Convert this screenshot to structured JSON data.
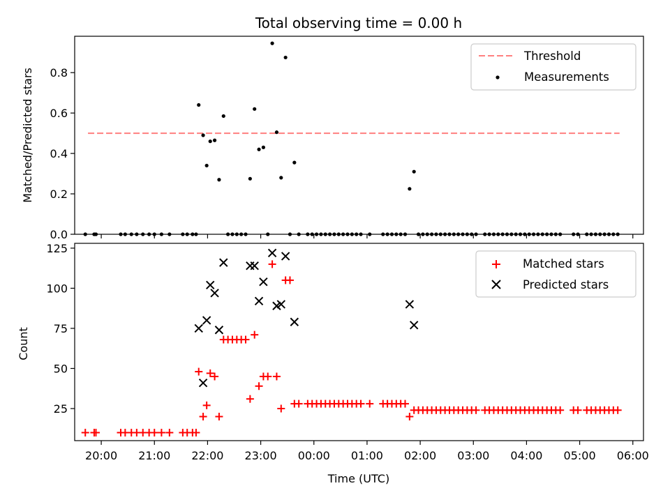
{
  "chart_data": [
    {
      "type": "scatter",
      "title": "Total observing time = 0.00 h",
      "xlabel": "",
      "ylabel": "Matched/Predicted stars",
      "xlim": [
        "19:30",
        "06:12"
      ],
      "ylim": [
        0,
        0.98
      ],
      "yticks": [
        0.0,
        0.2,
        0.4,
        0.6,
        0.8
      ],
      "yticklabels": [
        "0.0",
        "0.2",
        "0.4",
        "0.6",
        "0.8"
      ],
      "legend_position": "top-right",
      "legend": [
        "Threshold",
        "Measurements"
      ],
      "threshold": {
        "name": "Threshold",
        "value": 0.5,
        "x_start": "19:45",
        "x_end": "05:45",
        "color": "#ff7f7f",
        "style": "dashed"
      },
      "series": [
        {
          "name": "Measurements",
          "color": "#000000",
          "points": [
            [
              "19:42",
              0.0
            ],
            [
              "19:52",
              0.0
            ],
            [
              "19:54",
              0.0
            ],
            [
              "20:22",
              0.0
            ],
            [
              "20:27",
              0.0
            ],
            [
              "20:34",
              0.0
            ],
            [
              "20:40",
              0.0
            ],
            [
              "20:47",
              0.0
            ],
            [
              "20:54",
              0.0
            ],
            [
              "21:00",
              0.0
            ],
            [
              "21:08",
              0.0
            ],
            [
              "21:17",
              0.0
            ],
            [
              "21:32",
              0.0
            ],
            [
              "21:37",
              0.0
            ],
            [
              "21:43",
              0.0
            ],
            [
              "21:47",
              0.0
            ],
            [
              "21:50",
              0.64
            ],
            [
              "21:55",
              0.49
            ],
            [
              "21:59",
              0.34
            ],
            [
              "22:03",
              0.46
            ],
            [
              "22:08",
              0.465
            ],
            [
              "22:13",
              0.27
            ],
            [
              "22:18",
              0.585
            ],
            [
              "22:23",
              0.0
            ],
            [
              "22:28",
              0.0
            ],
            [
              "22:33",
              0.0
            ],
            [
              "22:38",
              0.0
            ],
            [
              "22:43",
              0.0
            ],
            [
              "22:48",
              0.275
            ],
            [
              "22:53",
              0.62
            ],
            [
              "22:58",
              0.42
            ],
            [
              "23:03",
              0.43
            ],
            [
              "23:08",
              0.0
            ],
            [
              "23:13",
              0.945
            ],
            [
              "23:18",
              0.505
            ],
            [
              "23:23",
              0.28
            ],
            [
              "23:28",
              0.875
            ],
            [
              "23:33",
              0.0
            ],
            [
              "23:38",
              0.355
            ],
            [
              "23:43",
              0.0
            ],
            [
              "23:53",
              0.0
            ],
            [
              "23:58",
              0.0
            ],
            [
              "00:03",
              0.0
            ],
            [
              "00:08",
              0.0
            ],
            [
              "00:13",
              0.0
            ],
            [
              "00:18",
              0.0
            ],
            [
              "00:23",
              0.0
            ],
            [
              "00:28",
              0.0
            ],
            [
              "00:33",
              0.0
            ],
            [
              "00:38",
              0.0
            ],
            [
              "00:43",
              0.0
            ],
            [
              "00:48",
              0.0
            ],
            [
              "00:53",
              0.0
            ],
            [
              "01:03",
              0.0
            ],
            [
              "01:18",
              0.0
            ],
            [
              "01:23",
              0.0
            ],
            [
              "01:28",
              0.0
            ],
            [
              "01:33",
              0.0
            ],
            [
              "01:38",
              0.0
            ],
            [
              "01:43",
              0.0
            ],
            [
              "01:48",
              0.225
            ],
            [
              "01:53",
              0.31
            ],
            [
              "01:58",
              0.0
            ],
            [
              "02:03",
              0.0
            ],
            [
              "02:08",
              0.0
            ],
            [
              "02:13",
              0.0
            ],
            [
              "02:18",
              0.0
            ],
            [
              "02:23",
              0.0
            ],
            [
              "02:28",
              0.0
            ],
            [
              "02:33",
              0.0
            ],
            [
              "02:38",
              0.0
            ],
            [
              "02:43",
              0.0
            ],
            [
              "02:48",
              0.0
            ],
            [
              "02:53",
              0.0
            ],
            [
              "02:58",
              0.0
            ],
            [
              "03:03",
              0.0
            ],
            [
              "03:13",
              0.0
            ],
            [
              "03:18",
              0.0
            ],
            [
              "03:23",
              0.0
            ],
            [
              "03:28",
              0.0
            ],
            [
              "03:33",
              0.0
            ],
            [
              "03:38",
              0.0
            ],
            [
              "03:43",
              0.0
            ],
            [
              "03:48",
              0.0
            ],
            [
              "03:53",
              0.0
            ],
            [
              "03:58",
              0.0
            ],
            [
              "04:03",
              0.0
            ],
            [
              "04:08",
              0.0
            ],
            [
              "04:13",
              0.0
            ],
            [
              "04:18",
              0.0
            ],
            [
              "04:23",
              0.0
            ],
            [
              "04:28",
              0.0
            ],
            [
              "04:33",
              0.0
            ],
            [
              "04:38",
              0.0
            ],
            [
              "04:53",
              0.0
            ],
            [
              "04:58",
              0.0
            ],
            [
              "05:08",
              0.0
            ],
            [
              "05:13",
              0.0
            ],
            [
              "05:18",
              0.0
            ],
            [
              "05:23",
              0.0
            ],
            [
              "05:28",
              0.0
            ],
            [
              "05:33",
              0.0
            ],
            [
              "05:38",
              0.0
            ],
            [
              "05:43",
              0.0
            ]
          ]
        }
      ]
    },
    {
      "type": "scatter",
      "title": "",
      "xlabel": "Time (UTC)",
      "ylabel": "Count",
      "xlim": [
        "19:30",
        "06:12"
      ],
      "ylim": [
        5,
        128
      ],
      "yticks": [
        25,
        50,
        75,
        100,
        125
      ],
      "yticklabels": [
        "25",
        "50",
        "75",
        "100",
        "125"
      ],
      "xticks": [
        "20:00",
        "21:00",
        "22:00",
        "23:00",
        "00:00",
        "01:00",
        "02:00",
        "03:00",
        "04:00",
        "05:00",
        "06:00"
      ],
      "legend_position": "top-right",
      "legend": [
        "Matched stars",
        "Predicted stars"
      ],
      "series": [
        {
          "name": "Matched stars",
          "marker": "+",
          "color": "#ff0000",
          "points": [
            [
              "19:42",
              10
            ],
            [
              "19:52",
              10
            ],
            [
              "19:54",
              10
            ],
            [
              "20:22",
              10
            ],
            [
              "20:27",
              10
            ],
            [
              "20:34",
              10
            ],
            [
              "20:40",
              10
            ],
            [
              "20:47",
              10
            ],
            [
              "20:54",
              10
            ],
            [
              "21:00",
              10
            ],
            [
              "21:08",
              10
            ],
            [
              "21:17",
              10
            ],
            [
              "21:32",
              10
            ],
            [
              "21:37",
              10
            ],
            [
              "21:43",
              10
            ],
            [
              "21:47",
              10
            ],
            [
              "21:50",
              48
            ],
            [
              "21:55",
              20
            ],
            [
              "21:59",
              27
            ],
            [
              "22:03",
              47
            ],
            [
              "22:08",
              45
            ],
            [
              "22:13",
              20
            ],
            [
              "22:18",
              68
            ],
            [
              "22:23",
              68
            ],
            [
              "22:28",
              68
            ],
            [
              "22:33",
              68
            ],
            [
              "22:38",
              68
            ],
            [
              "22:43",
              68
            ],
            [
              "22:48",
              31
            ],
            [
              "22:53",
              71
            ],
            [
              "22:58",
              39
            ],
            [
              "23:03",
              45
            ],
            [
              "23:08",
              45
            ],
            [
              "23:13",
              115
            ],
            [
              "23:18",
              45
            ],
            [
              "23:23",
              25
            ],
            [
              "23:28",
              105
            ],
            [
              "23:33",
              105
            ],
            [
              "23:38",
              28
            ],
            [
              "23:43",
              28
            ],
            [
              "23:53",
              28
            ],
            [
              "23:58",
              28
            ],
            [
              "00:03",
              28
            ],
            [
              "00:08",
              28
            ],
            [
              "00:13",
              28
            ],
            [
              "00:18",
              28
            ],
            [
              "00:23",
              28
            ],
            [
              "00:28",
              28
            ],
            [
              "00:33",
              28
            ],
            [
              "00:38",
              28
            ],
            [
              "00:43",
              28
            ],
            [
              "00:48",
              28
            ],
            [
              "00:53",
              28
            ],
            [
              "01:03",
              28
            ],
            [
              "01:18",
              28
            ],
            [
              "01:23",
              28
            ],
            [
              "01:28",
              28
            ],
            [
              "01:33",
              28
            ],
            [
              "01:38",
              28
            ],
            [
              "01:43",
              28
            ],
            [
              "01:48",
              20
            ],
            [
              "01:53",
              24
            ],
            [
              "01:58",
              24
            ],
            [
              "02:03",
              24
            ],
            [
              "02:08",
              24
            ],
            [
              "02:13",
              24
            ],
            [
              "02:18",
              24
            ],
            [
              "02:23",
              24
            ],
            [
              "02:28",
              24
            ],
            [
              "02:33",
              24
            ],
            [
              "02:38",
              24
            ],
            [
              "02:43",
              24
            ],
            [
              "02:48",
              24
            ],
            [
              "02:53",
              24
            ],
            [
              "02:58",
              24
            ],
            [
              "03:03",
              24
            ],
            [
              "03:13",
              24
            ],
            [
              "03:18",
              24
            ],
            [
              "03:23",
              24
            ],
            [
              "03:28",
              24
            ],
            [
              "03:33",
              24
            ],
            [
              "03:38",
              24
            ],
            [
              "03:43",
              24
            ],
            [
              "03:48",
              24
            ],
            [
              "03:53",
              24
            ],
            [
              "03:58",
              24
            ],
            [
              "04:03",
              24
            ],
            [
              "04:08",
              24
            ],
            [
              "04:13",
              24
            ],
            [
              "04:18",
              24
            ],
            [
              "04:23",
              24
            ],
            [
              "04:28",
              24
            ],
            [
              "04:33",
              24
            ],
            [
              "04:38",
              24
            ],
            [
              "04:53",
              24
            ],
            [
              "04:58",
              24
            ],
            [
              "05:08",
              24
            ],
            [
              "05:13",
              24
            ],
            [
              "05:18",
              24
            ],
            [
              "05:23",
              24
            ],
            [
              "05:28",
              24
            ],
            [
              "05:33",
              24
            ],
            [
              "05:38",
              24
            ],
            [
              "05:43",
              24
            ]
          ]
        },
        {
          "name": "Predicted stars",
          "marker": "x",
          "color": "#000000",
          "points": [
            [
              "21:50",
              75
            ],
            [
              "21:55",
              41
            ],
            [
              "21:59",
              80
            ],
            [
              "22:03",
              102
            ],
            [
              "22:08",
              97
            ],
            [
              "22:13",
              74
            ],
            [
              "22:18",
              116
            ],
            [
              "22:48",
              114
            ],
            [
              "22:53",
              114
            ],
            [
              "22:58",
              92
            ],
            [
              "23:03",
              104
            ],
            [
              "23:13",
              122
            ],
            [
              "23:18",
              89
            ],
            [
              "23:23",
              90
            ],
            [
              "23:28",
              120
            ],
            [
              "23:38",
              79
            ],
            [
              "01:48",
              90
            ],
            [
              "01:53",
              77
            ]
          ]
        }
      ]
    }
  ]
}
